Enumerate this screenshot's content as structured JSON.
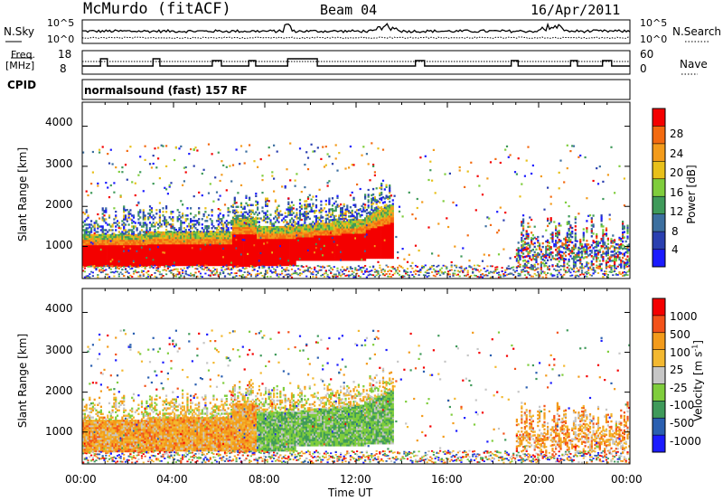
{
  "header": {
    "station": "McMurdo (fitACF)",
    "beam": "Beam 04",
    "date": "16/Apr/2011"
  },
  "noise_panel": {
    "left_label": "N.Sky",
    "right_label": "N.Search",
    "left_ticks": [
      "10^5",
      "10^0"
    ],
    "right_ticks": [
      "10^5",
      "10^0"
    ]
  },
  "freq_panel": {
    "left_label_line1": "Freq.",
    "left_label_line2": "[MHz]",
    "right_label": "Nave",
    "left_ticks": [
      "18",
      "8"
    ],
    "right_ticks": [
      "60",
      "0"
    ]
  },
  "cpid": {
    "label": "CPID",
    "text": "normalsound (fast) 157 RF"
  },
  "colors": {
    "power": [
      "#1b1bff",
      "#2a3fb0",
      "#3c6f9f",
      "#3f9a5a",
      "#7fcd3c",
      "#e8c01a",
      "#f39b1b",
      "#f36a10",
      "#f40000"
    ],
    "velocity": [
      "#f40000",
      "#f3521a",
      "#f39b1b",
      "#f3b830",
      "#c6c6c6",
      "#7fcd3c",
      "#3f9a5a",
      "#2a5fb0",
      "#1b1bff"
    ]
  },
  "chart_data": [
    {
      "type": "heatmap",
      "name": "power",
      "ylabel": "Slant Range [km]",
      "yticks": [
        "1000",
        "2000",
        "3000",
        "4000"
      ],
      "ylim": [
        200,
        4600
      ],
      "xlim_hours": [
        0,
        24
      ],
      "colorbar": {
        "label": "Power [dB]",
        "ticks": [
          "4",
          "8",
          "12",
          "16",
          "20",
          "24",
          "28"
        ],
        "range": [
          0,
          32
        ]
      }
    },
    {
      "type": "heatmap",
      "name": "velocity",
      "ylabel": "Slant Range [km]",
      "yticks": [
        "1000",
        "2000",
        "3000",
        "4000"
      ],
      "ylim": [
        200,
        4600
      ],
      "xlim_hours": [
        0,
        24
      ],
      "xlabel": "Time UT",
      "xticks": [
        "00:00",
        "04:00",
        "08:00",
        "12:00",
        "16:00",
        "20:00",
        "00:00"
      ],
      "colorbar": {
        "label": "Velocity [m s-1]",
        "ticks": [
          "1000",
          "500",
          "100",
          "25",
          "-25",
          "-100",
          "-500",
          "-1000"
        ]
      }
    }
  ]
}
